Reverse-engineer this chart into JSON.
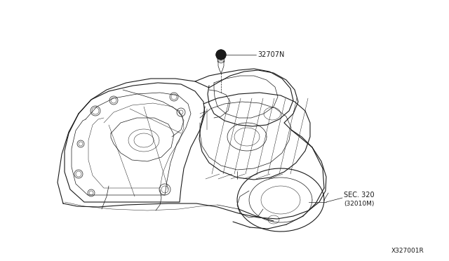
{
  "background_color": "#ffffff",
  "line_color": "#1a1a1a",
  "label_32707N": "32707N",
  "label_sec320": "SEC. 320",
  "label_sec320_sub": "(32010M)",
  "label_part_num": "X327001R",
  "fig_width": 6.4,
  "fig_height": 3.72,
  "dpi": 100,
  "text_fontsize": 7.0,
  "part_num_fontsize": 6.5
}
